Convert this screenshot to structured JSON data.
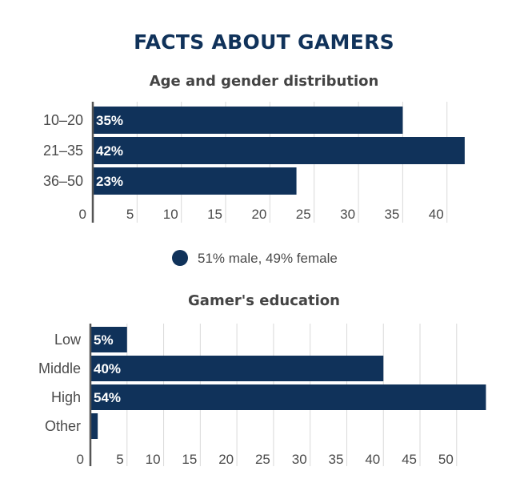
{
  "title": "FACTS ABOUT GAMERS",
  "colors": {
    "bar": "#10325a",
    "grid": "#d9d9d9",
    "axis": "#555555"
  },
  "chart_data": [
    {
      "type": "bar",
      "orientation": "horizontal",
      "title": "Age and gender distribution",
      "categories": [
        "10–20",
        "21–35",
        "36–50"
      ],
      "values": [
        35,
        42,
        23
      ],
      "data_labels": [
        "35%",
        "42%",
        "23%"
      ],
      "xticks": [
        0,
        5,
        10,
        15,
        20,
        25,
        30,
        35,
        40
      ],
      "xlim": [
        0,
        44
      ],
      "grid": true,
      "legend": {
        "label": "51% male, 49% female",
        "position": "bottom-center"
      }
    },
    {
      "type": "bar",
      "orientation": "horizontal",
      "title": "Gamer's education",
      "categories": [
        "Low",
        "Middle",
        "High",
        "Other"
      ],
      "values": [
        5,
        40,
        54,
        1
      ],
      "data_labels": [
        "5%",
        "40%",
        "54%",
        ""
      ],
      "xticks": [
        0,
        5,
        10,
        15,
        20,
        25,
        30,
        35,
        40,
        45,
        50
      ],
      "xlim": [
        0,
        54.5
      ],
      "grid": true
    }
  ]
}
